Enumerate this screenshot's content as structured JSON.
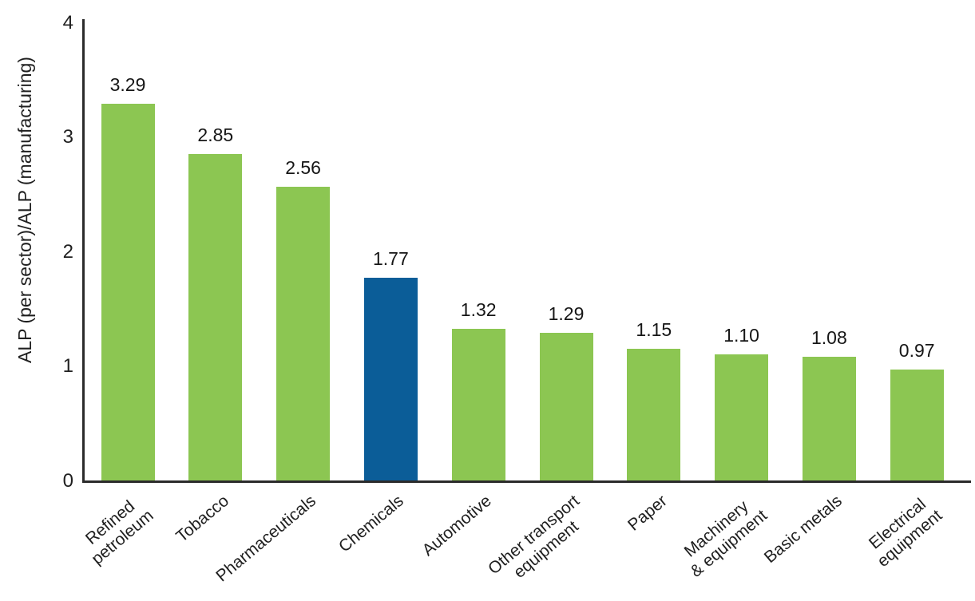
{
  "chart_data": {
    "type": "bar",
    "title": "",
    "xlabel": "",
    "ylabel": "ALP (per sector)/ALP (manufacturing)",
    "categories": [
      "Refined\npetroleum",
      "Tobacco",
      "Pharmaceuticals",
      "Chemicals",
      "Automotive",
      "Other transport\nequipment",
      "Paper",
      "Machinery\n& equipment",
      "Basic metals",
      "Electrical\nequipment"
    ],
    "values": [
      3.29,
      2.85,
      2.56,
      1.77,
      1.32,
      1.29,
      1.15,
      1.1,
      1.08,
      0.97
    ],
    "value_labels": [
      "3.29",
      "2.85",
      "2.56",
      "1.77",
      "1.32",
      "1.29",
      "1.15",
      "1.10",
      "1.08",
      "0.97"
    ],
    "highlight_index": 3,
    "ylim": [
      0,
      4
    ],
    "yticks": [
      0,
      1,
      2,
      3,
      4
    ],
    "grid": false,
    "legend": false,
    "colors": {
      "bar": "#8CC652",
      "highlight": "#0B5D98",
      "axis": "#2B2B2B",
      "text": "#1F1F1F"
    }
  }
}
